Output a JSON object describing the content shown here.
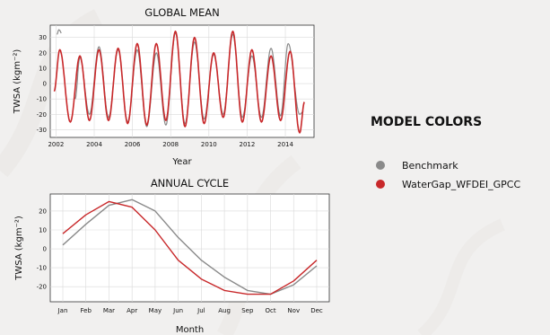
{
  "legend": {
    "heading": "MODEL COLORS",
    "entries": [
      {
        "label": "Benchmark",
        "color": "#8a8a8a"
      },
      {
        "label": "WaterGap_WFDEI_GPCC",
        "color": "#c8282a"
      }
    ]
  },
  "chart_data": [
    {
      "type": "line",
      "title": "GLOBAL MEAN",
      "xlabel": "Year",
      "ylabel": "TWSA (kgm⁻²)",
      "xlim": [
        2001.7,
        2015.5
      ],
      "ylim": [
        -35,
        38
      ],
      "grid": true,
      "x_ticks": [
        2002,
        2004,
        2006,
        2008,
        2010,
        2012,
        2014
      ],
      "y_ticks": [
        -30,
        -20,
        -10,
        0,
        10,
        20,
        30
      ],
      "series": [
        {
          "name": "WaterGap_WFDEI_GPCC",
          "color": "#c8282a",
          "peaks": [
            [
              2002.2,
              22
            ],
            [
              2003.25,
              18
            ],
            [
              2004.25,
              22
            ],
            [
              2005.25,
              23
            ],
            [
              2006.25,
              26
            ],
            [
              2007.25,
              26
            ],
            [
              2008.25,
              34
            ],
            [
              2009.25,
              30
            ],
            [
              2010.25,
              20
            ],
            [
              2011.25,
              34
            ],
            [
              2012.25,
              22
            ],
            [
              2013.25,
              18
            ],
            [
              2014.25,
              21
            ]
          ],
          "troughs": [
            [
              2002.75,
              -25
            ],
            [
              2003.75,
              -24
            ],
            [
              2004.75,
              -24
            ],
            [
              2005.75,
              -26
            ],
            [
              2006.75,
              -27
            ],
            [
              2007.75,
              -24
            ],
            [
              2008.75,
              -28
            ],
            [
              2009.75,
              -26
            ],
            [
              2010.75,
              -22
            ],
            [
              2011.75,
              -25
            ],
            [
              2012.75,
              -25
            ],
            [
              2013.75,
              -24
            ],
            [
              2014.75,
              -32
            ]
          ],
          "start": [
            2001.9,
            -5
          ],
          "end": [
            2015.0,
            -12
          ]
        },
        {
          "name": "Benchmark",
          "color": "#8a8a8a",
          "peaks": [
            [
              2002.15,
              35
            ],
            [
              2003.25,
              17
            ],
            [
              2004.25,
              24
            ],
            [
              2005.25,
              22
            ],
            [
              2006.25,
              22
            ],
            [
              2007.25,
              20
            ],
            [
              2008.25,
              33
            ],
            [
              2009.25,
              27
            ],
            [
              2010.25,
              19
            ],
            [
              2011.25,
              32
            ],
            [
              2012.25,
              18
            ],
            [
              2013.25,
              23
            ],
            [
              2014.15,
              26
            ]
          ],
          "troughs": [
            [
              2003.0,
              -10
            ],
            [
              2003.75,
              -20
            ],
            [
              2004.75,
              -22
            ],
            [
              2005.75,
              -25
            ],
            [
              2006.75,
              -28
            ],
            [
              2007.75,
              -27
            ],
            [
              2008.75,
              -26
            ],
            [
              2009.75,
              -23
            ],
            [
              2010.75,
              -20
            ],
            [
              2011.75,
              -22
            ],
            [
              2012.75,
              -22
            ],
            [
              2013.75,
              -21
            ],
            [
              2014.75,
              -20
            ]
          ],
          "start": [
            2002.05,
            32
          ],
          "end": [
            2014.95,
            -18
          ],
          "gap_after": 2002.3
        }
      ]
    },
    {
      "type": "line",
      "title": "ANNUAL CYCLE",
      "xlabel": "Month",
      "ylabel": "TWSA (kgm⁻²)",
      "categories": [
        "Jan",
        "Feb",
        "Mar",
        "Apr",
        "May",
        "Jun",
        "Jul",
        "Aug",
        "Sep",
        "Oct",
        "Nov",
        "Dec"
      ],
      "ylim": [
        -28,
        29
      ],
      "grid": true,
      "y_ticks": [
        -20,
        -10,
        0,
        10,
        20
      ],
      "series": [
        {
          "name": "Benchmark",
          "color": "#8a8a8a",
          "values": [
            2,
            13,
            23,
            26,
            20,
            6,
            -6,
            -15,
            -22,
            -24,
            -19,
            -9
          ]
        },
        {
          "name": "WaterGap_WFDEI_GPCC",
          "color": "#c8282a",
          "values": [
            8,
            18,
            25,
            22,
            10,
            -6,
            -16,
            -22,
            -24,
            -24,
            -17,
            -6
          ]
        }
      ]
    }
  ]
}
